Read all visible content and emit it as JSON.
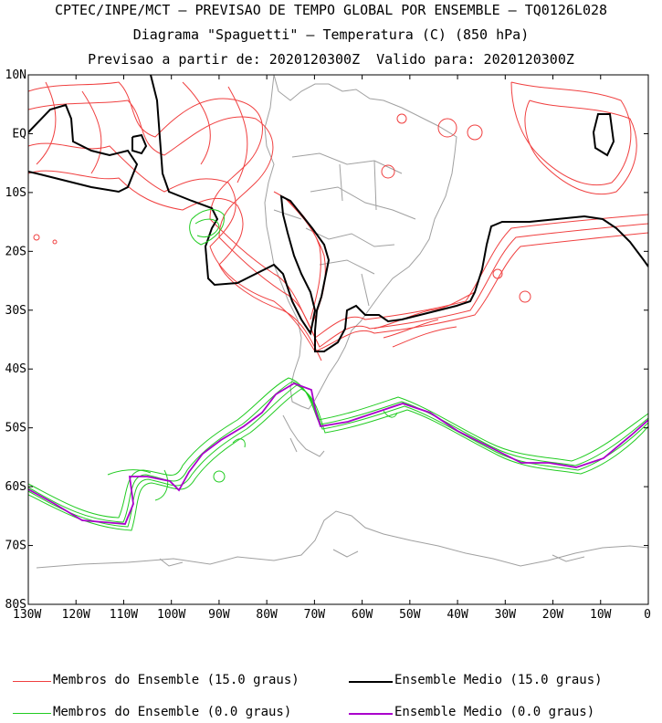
{
  "header": {
    "line1": "CPTEC/INPE/MCT — PREVISAO DE TEMPO GLOBAL POR ENSEMBLE — TQ0126L028",
    "line2": "Diagrama \"Spaguetti\" — Temperatura (C) (850 hPa)",
    "line3": "Previsao a partir de: 2020120300Z  Valido para: 2020120300Z"
  },
  "map": {
    "lat_labels": [
      "10N",
      "EQ",
      "10S",
      "20S",
      "30S",
      "40S",
      "50S",
      "60S",
      "70S",
      "80S"
    ],
    "lon_labels": [
      "130W",
      "120W",
      "110W",
      "100W",
      "90W",
      "80W",
      "70W",
      "60W",
      "50W",
      "40W",
      "30W",
      "20W",
      "10W",
      "0"
    ],
    "lat_range": [
      -80,
      10
    ],
    "lon_range": [
      -130,
      0
    ],
    "colors": {
      "members_15": "#f04040",
      "mean_15": "#000000",
      "members_0": "#22cc22",
      "mean_0": "#aa00cc",
      "coast": "#a0a0a0"
    }
  },
  "legend": {
    "members_15": "Membros do Ensemble (15.0 graus)",
    "mean_15": "Ensemble Medio (15.0 graus)",
    "members_0": "Membros do Ensemble (0.0 graus)",
    "mean_0": "Ensemble Medio (0.0 graus)"
  }
}
